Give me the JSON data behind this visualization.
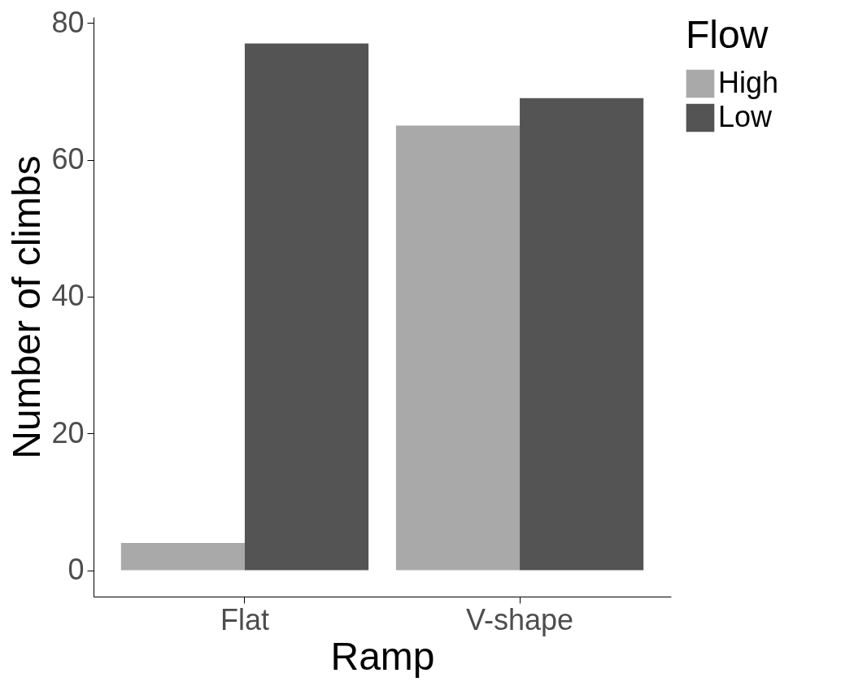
{
  "chart_data": {
    "type": "bar",
    "xlabel": "Ramp",
    "ylabel": "Number of climbs",
    "legend_title": "Flow",
    "categories": [
      "Flat",
      "V-shape"
    ],
    "series": [
      {
        "name": "High",
        "color": "#a9a9a9",
        "values": [
          4,
          65
        ]
      },
      {
        "name": "Low",
        "color": "#545454",
        "values": [
          77,
          69
        ]
      }
    ],
    "ylim": [
      -3.85,
      80.85
    ],
    "yticks": [
      0,
      20,
      40,
      60,
      80
    ],
    "grid": false,
    "legend": "right"
  }
}
